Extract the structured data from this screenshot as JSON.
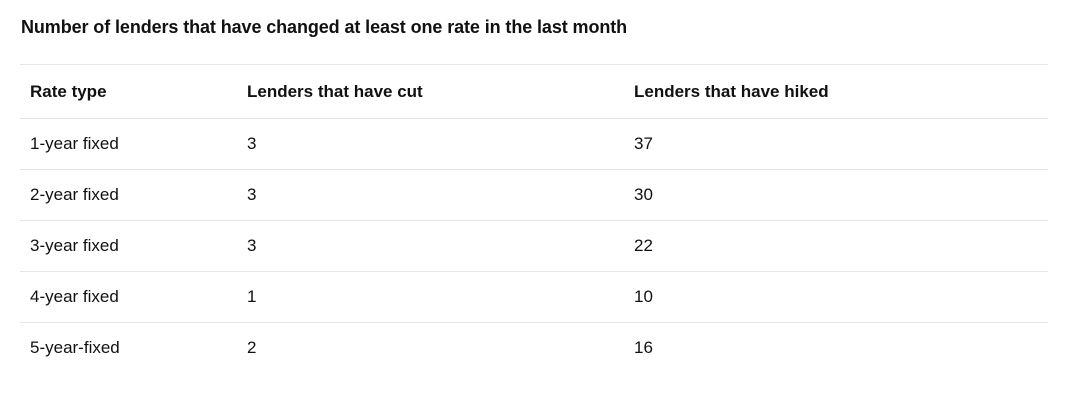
{
  "title": "Number of lenders that have changed at least one rate in the last month",
  "table": {
    "columns": [
      "Rate type",
      "Lenders that have cut",
      "Lenders that have hiked"
    ],
    "rows": [
      [
        "1-year fixed",
        "3",
        "37"
      ],
      [
        "2-year fixed",
        "3",
        "30"
      ],
      [
        "3-year fixed",
        "3",
        "22"
      ],
      [
        "4-year fixed",
        "1",
        "10"
      ],
      [
        "5-year-fixed",
        "2",
        "16"
      ]
    ]
  }
}
